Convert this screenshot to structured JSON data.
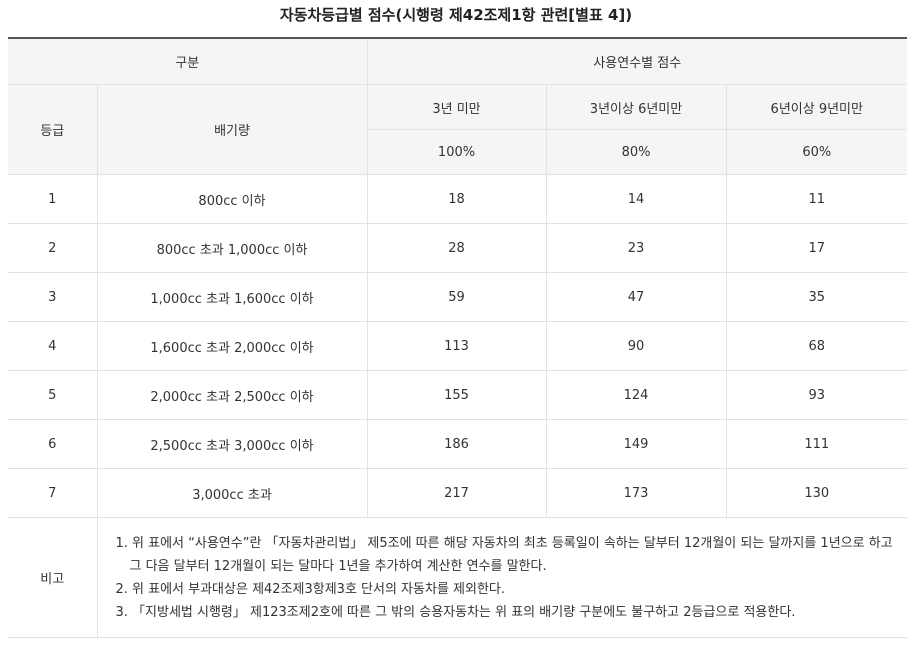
{
  "title": "자동차등급별 점수(시행령 제42조제1항 관련[별표 4])",
  "header": {
    "category": "구분",
    "years_group": "사용연수별 점수",
    "grade": "등급",
    "displacement": "배기량",
    "periods": [
      "3년 미만",
      "3년이상 6년미만",
      "6년이상 9년미만"
    ],
    "rates": [
      "100%",
      "80%",
      "60%"
    ]
  },
  "rows": [
    {
      "grade": "1",
      "displacement": "800cc 이하",
      "scores": [
        "18",
        "14",
        "11"
      ]
    },
    {
      "grade": "2",
      "displacement": "800cc 초과 1,000cc 이하",
      "scores": [
        "28",
        "23",
        "17"
      ]
    },
    {
      "grade": "3",
      "displacement": "1,000cc 초과 1,600cc 이하",
      "scores": [
        "59",
        "47",
        "35"
      ]
    },
    {
      "grade": "4",
      "displacement": "1,600cc 초과 2,000cc 이하",
      "scores": [
        "113",
        "90",
        "68"
      ]
    },
    {
      "grade": "5",
      "displacement": "2,000cc 초과 2,500cc 이하",
      "scores": [
        "155",
        "124",
        "93"
      ]
    },
    {
      "grade": "6",
      "displacement": "2,500cc 초과 3,000cc 이하",
      "scores": [
        "186",
        "149",
        "111"
      ]
    },
    {
      "grade": "7",
      "displacement": "3,000cc 초과",
      "scores": [
        "217",
        "173",
        "130"
      ]
    }
  ],
  "remarks": {
    "label": "비고",
    "items": [
      "1. 위 표에서 “사용연수”란 「자동차관리법」 제5조에 따른 해당 자동차의 최초 등록일이 속하는 달부터 12개월이 되는 달까지를 1년으로 하고 그 다음 달부터 12개월이 되는 달마다 1년을 추가하여 계산한 연수를 말한다.",
      "2. 위 표에서 부과대상은 제42조제3항제3호 단서의 자동차를 제외한다.",
      "3. 「지방세법 시행령」 제123조제2호에 따른 그 밖의 승용자동차는 위 표의 배기량 구분에도 불구하고 2등급으로 적용한다."
    ]
  }
}
